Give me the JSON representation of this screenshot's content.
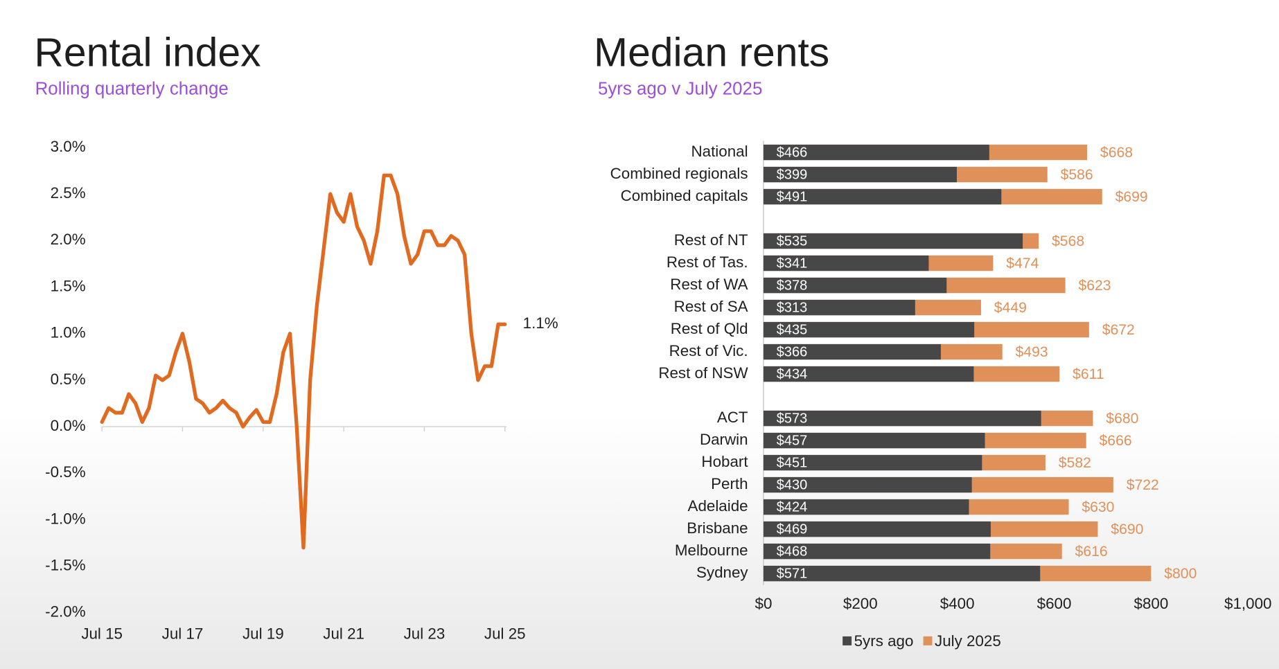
{
  "chart_data": [
    {
      "type": "line",
      "title": "Rental index",
      "subtitle": "Rolling quarterly change",
      "categories": [
        "Jul 15",
        null,
        null,
        null,
        null,
        null,
        null,
        null,
        null,
        null,
        null,
        null,
        "Jul 17",
        null,
        null,
        null,
        null,
        null,
        null,
        null,
        null,
        null,
        null,
        null,
        "Jul 19",
        null,
        null,
        null,
        null,
        null,
        null,
        null,
        null,
        null,
        null,
        null,
        "Jul 21",
        null,
        null,
        null,
        null,
        null,
        null,
        null,
        null,
        null,
        null,
        null,
        "Jul 23",
        null,
        null,
        null,
        null,
        null,
        null,
        null,
        null,
        null,
        null,
        null,
        "Jul 25"
      ],
      "values": [
        0.05,
        0.2,
        0.15,
        0.15,
        0.35,
        0.25,
        0.05,
        0.2,
        0.55,
        0.5,
        0.55,
        0.8,
        1.0,
        0.7,
        0.3,
        0.25,
        0.15,
        0.2,
        0.28,
        0.2,
        0.15,
        0.0,
        0.1,
        0.18,
        0.05,
        0.05,
        0.35,
        0.8,
        1.0,
        0.0,
        -1.3,
        0.5,
        1.3,
        1.9,
        2.5,
        2.3,
        2.2,
        2.5,
        2.15,
        2.0,
        1.75,
        2.1,
        2.7,
        2.7,
        2.5,
        2.05,
        1.75,
        1.85,
        2.1,
        2.1,
        1.95,
        1.95,
        2.05,
        2.0,
        1.85,
        1.0,
        0.5,
        0.65,
        0.65,
        1.1,
        1.1
      ],
      "color": "#e06a20",
      "end_label": "1.1%",
      "ylim": [
        -2,
        3
      ],
      "yticks": [
        {
          "value": 3,
          "label": "3.0%"
        },
        {
          "value": 2.5,
          "label": "2.5%"
        },
        {
          "value": 2,
          "label": "2.0%"
        },
        {
          "value": 1.5,
          "label": "1.5%"
        },
        {
          "value": 1,
          "label": "1.0%"
        },
        {
          "value": 0.5,
          "label": "0.5%"
        },
        {
          "value": 0,
          "label": "0.0%"
        },
        {
          "value": -0.5,
          "label": "-0.5%"
        },
        {
          "value": -1,
          "label": "-1.0%"
        },
        {
          "value": -1.5,
          "label": "-1.5%"
        },
        {
          "value": -2,
          "label": "-2.0%"
        }
      ]
    },
    {
      "type": "hbar",
      "title": "Median rents",
      "subtitle": "5yrs ago v July 2025",
      "categories": [
        "National",
        "Combined regionals",
        "Combined capitals",
        null,
        "Rest of NT",
        "Rest of Tas.",
        "Rest of WA",
        "Rest of SA",
        "Rest of Qld",
        "Rest of Vic.",
        "Rest of NSW",
        null,
        "ACT",
        "Darwin",
        "Hobart",
        "Perth",
        "Adelaide",
        "Brisbane",
        "Melbourne",
        "Sydney"
      ],
      "series": [
        {
          "name": "5yrs ago",
          "color": "#474747",
          "values": [
            466,
            399,
            491,
            null,
            535,
            341,
            378,
            313,
            435,
            366,
            434,
            null,
            573,
            457,
            451,
            430,
            424,
            469,
            468,
            571
          ],
          "value_labels": [
            "$466",
            "$399",
            "$491",
            null,
            "$535",
            "$341",
            "$378",
            "$313",
            "$435",
            "$366",
            "$434",
            null,
            "$573",
            "$457",
            "$451",
            "$430",
            "$424",
            "$469",
            "$468",
            "$571"
          ]
        },
        {
          "name": "July 2025",
          "color": "#e0915a",
          "values": [
            668,
            586,
            699,
            null,
            568,
            474,
            623,
            449,
            672,
            493,
            611,
            null,
            680,
            666,
            582,
            722,
            630,
            690,
            616,
            800
          ],
          "value_labels": [
            "$668",
            "$586",
            "$699",
            null,
            "$568",
            "$474",
            "$623",
            "$449",
            "$672",
            "$493",
            "$611",
            null,
            "$680",
            "$666",
            "$582",
            "$722",
            "$630",
            "$690",
            "$616",
            "$800"
          ]
        }
      ],
      "xlim": [
        0,
        1000
      ],
      "xticks": [
        {
          "value": 0,
          "label": "$0"
        },
        {
          "value": 200,
          "label": "$200"
        },
        {
          "value": 400,
          "label": "$400"
        },
        {
          "value": 600,
          "label": "$600"
        },
        {
          "value": 800,
          "label": "$800"
        },
        {
          "value": 1000,
          "label": "$1,000"
        }
      ],
      "legend": "bottom"
    }
  ]
}
